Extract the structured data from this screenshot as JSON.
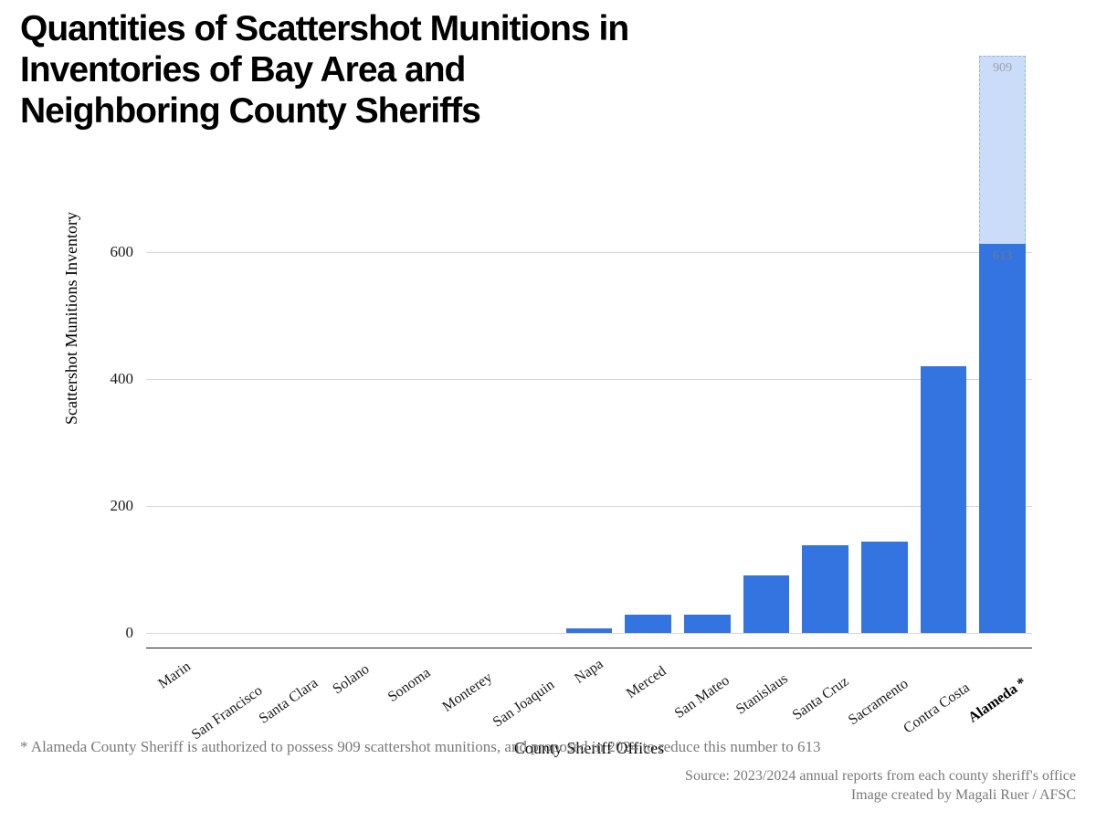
{
  "title": "Quantities of Scattershot Munitions in Inventories of Bay Area and Neighboring County Sheriffs",
  "title_fontsize": 39,
  "chart": {
    "type": "bar",
    "categories": [
      "Marin",
      "San Francisco",
      "Santa Clara",
      "Solano",
      "Sonoma",
      "Monterey",
      "San Joaquin",
      "Napa",
      "Merced",
      "San Mateo",
      "Stanislaus",
      "Santa Cruz",
      "Sacramento",
      "Contra Costa",
      "Alameda *"
    ],
    "values": [
      0,
      0,
      0,
      0,
      0,
      0,
      0,
      6,
      28,
      28,
      90,
      138,
      143,
      420,
      613
    ],
    "overlay_index": 14,
    "overlay_value": 909,
    "overlay_label": "909",
    "overlay_inner_label": "613",
    "bar_fill": "#3374e0",
    "overlay_fill": "#cadcf7",
    "overlay_border": "#8fb4ee",
    "overlay_label_color": "#9aa1aa",
    "inner_label_color": "#6f7885",
    "ylim": [
      -25,
      680
    ],
    "yticks": [
      0,
      200,
      400,
      600
    ],
    "y_axis_title": "Scattershot Munitions Inventory",
    "x_axis_title": "County Sheriff Offices",
    "grid_color": "#d8d8d8",
    "axis_line_color": "#202020",
    "tick_fontsize": 17,
    "axis_title_fontsize": 18,
    "bar_width_ratio": 0.78,
    "bold_category_index": 14,
    "background_color": "#ffffff"
  },
  "footnote": "* Alameda County Sheriff is authorized to possess 909 scattershot munitions, and proposed in 2024 to reduce this number to 613",
  "credit_line1": "Source: 2023/2024 annual reports from each county sheriff's office",
  "credit_line2": "Image created by Magali Ruer / AFSC",
  "footnote_color": "#7a7a7a"
}
